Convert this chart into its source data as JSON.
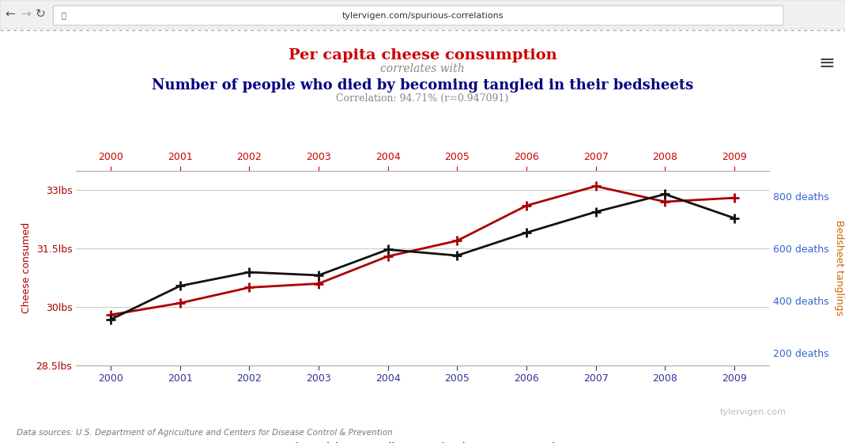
{
  "years": [
    2000,
    2001,
    2002,
    2003,
    2004,
    2005,
    2006,
    2007,
    2008,
    2009
  ],
  "cheese_lbs": [
    29.8,
    30.1,
    30.5,
    30.6,
    31.3,
    31.7,
    32.6,
    33.1,
    32.7,
    32.8
  ],
  "bedsheet_deaths": [
    327,
    456,
    509,
    497,
    596,
    573,
    661,
    741,
    809,
    717
  ],
  "title_line1": "Per capita cheese consumption",
  "title_line2": "correlates with",
  "title_line3": "Number of people who died by becoming tangled in their bedsheets",
  "correlation_text": "Correlation: 94.71% (r=0.947091)",
  "cheese_color": "#aa0000",
  "bedsheet_color": "#111111",
  "ylabel_left": "Cheese consumed",
  "ylabel_right": "Bedsheet tanglings",
  "ylim_cheese": [
    28.5,
    33.5
  ],
  "ylim_deaths": [
    150,
    900
  ],
  "yticks_cheese": [
    28.5,
    30.0,
    31.5,
    33.0
  ],
  "ytick_labels_cheese": [
    "28.5lbs",
    "30lbs",
    "31.5lbs",
    "33lbs"
  ],
  "yticks_deaths": [
    200,
    400,
    600,
    800
  ],
  "ytick_labels_deaths": [
    "200 deaths",
    "400 deaths",
    "600 deaths",
    "800 deaths"
  ],
  "source_text": "Data sources: U.S. Department of Agriculture and Centers for Disease Control & Prevention",
  "watermark": "tylervigen.com",
  "bg_color": "#ffffff",
  "grid_color": "#cccccc",
  "title1_color": "#cc0000",
  "title2_color": "#888888",
  "title3_color": "#000080",
  "corr_color": "#888888",
  "url_text": "tylervigen.com/spurious-correlations",
  "deaths_label_color": "#3366cc",
  "right_ylabel_color": "#cc6600"
}
